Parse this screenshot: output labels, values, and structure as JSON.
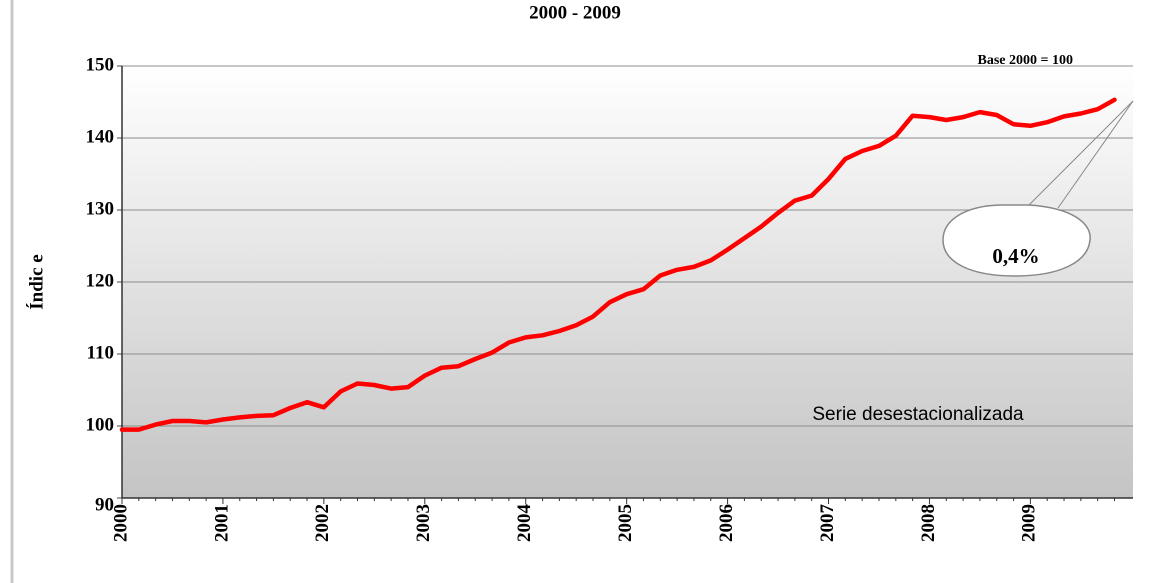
{
  "chart_data": {
    "type": "line",
    "title": "2000 - 2009",
    "y_label": "Índic e",
    "annotations": [
      "Base  2000 = 100",
      "Serie desestacionalizada",
      "0,4%"
    ],
    "categories": [
      "2000",
      null,
      null,
      null,
      null,
      null,
      "2001",
      null,
      null,
      null,
      null,
      null,
      "2002",
      null,
      null,
      null,
      null,
      null,
      "2003",
      null,
      null,
      null,
      null,
      null,
      "2004",
      null,
      null,
      null,
      null,
      null,
      "2005",
      null,
      null,
      null,
      null,
      null,
      "2006",
      null,
      null,
      null,
      null,
      null,
      "2007",
      null,
      null,
      null,
      null,
      null,
      "2008",
      null,
      null,
      null,
      null,
      null,
      "2009",
      null,
      null,
      null,
      null,
      null
    ],
    "series": [
      {
        "name": "Serie desestacionalizada",
        "color": "#ff0000",
        "values": [
          99.5,
          99.5,
          100.2,
          100.7,
          100.7,
          100.5,
          100.9,
          101.2,
          101.4,
          101.5,
          102.5,
          103.3,
          102.6,
          104.8,
          105.9,
          105.7,
          105.2,
          105.4,
          107.0,
          108.1,
          108.3,
          109.3,
          110.2,
          111.6,
          112.3,
          112.6,
          113.2,
          114.0,
          115.2,
          117.2,
          118.3,
          119.0,
          120.9,
          121.7,
          122.1,
          123.0,
          124.5,
          126.1,
          127.7,
          129.6,
          131.3,
          132.0,
          134.3,
          137.1,
          138.2,
          138.9,
          140.3,
          143.1,
          142.9,
          142.5,
          142.9,
          143.6,
          143.2,
          141.9,
          141.7,
          142.2,
          143.0,
          143.4,
          144.0,
          145.3
        ]
      }
    ],
    "ylim": [
      90,
      150
    ],
    "yticks": [
      90,
      100,
      110,
      120,
      130,
      140,
      150
    ],
    "grid": true
  }
}
